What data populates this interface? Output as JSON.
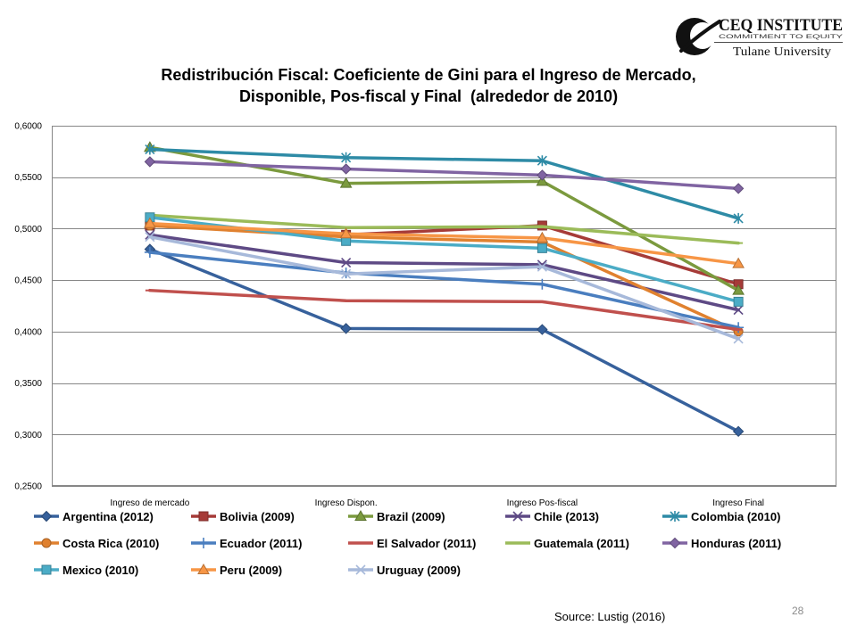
{
  "slide": {
    "source": "Source: Lustig (2016)",
    "page_number": "28"
  },
  "logo": {
    "emblem_icon": "ceq-emblem-icon",
    "name": "CEQ INSTITUTE",
    "tagline": "COMMITMENT TO EQUITY",
    "university": "Tulane University"
  },
  "chart_data": {
    "type": "line",
    "title": [
      "Redistribución Fiscal: Coeficiente de Gini para el Ingreso de Mercado,",
      "Disponible, Pos-fiscal y Final  (alrededor de 2010)"
    ],
    "categories": [
      "Ingreso de mercado",
      "Ingreso Dispon.",
      "Ingreso Pos-fiscal",
      "Ingreso Final"
    ],
    "ylim": [
      0.25,
      0.6
    ],
    "y_tick_labels": [
      "0,6000",
      "0,5500",
      "0,5000",
      "0,4500",
      "0,4000",
      "0,3500",
      "0,3000",
      "0,2500"
    ],
    "grid": true,
    "legend": "bottom",
    "series": [
      {
        "name": "Argentina (2012)",
        "color": "#37619C",
        "marker": "diamond",
        "values": [
          0.48,
          0.403,
          0.402,
          0.303
        ]
      },
      {
        "name": "Bolivia (2009)",
        "color": "#A63B38",
        "marker": "square",
        "values": [
          0.503,
          0.494,
          0.503,
          0.446
        ]
      },
      {
        "name": "Brazil (2009)",
        "color": "#7B9A3E",
        "marker": "triangle",
        "values": [
          0.579,
          0.544,
          0.546,
          0.44
        ]
      },
      {
        "name": "Chile (2013)",
        "color": "#5E4A85",
        "marker": "x",
        "values": [
          0.494,
          0.467,
          0.465,
          0.421
        ]
      },
      {
        "name": "Colombia (2010)",
        "color": "#2E8BA6",
        "marker": "star",
        "values": [
          0.577,
          0.569,
          0.566,
          0.51
        ]
      },
      {
        "name": "Costa Rica (2010)",
        "color": "#E0812F",
        "marker": "circle",
        "values": [
          0.503,
          0.492,
          0.487,
          0.4
        ]
      },
      {
        "name": "Ecuador (2011)",
        "color": "#4A7EBF",
        "marker": "plus",
        "values": [
          0.477,
          0.457,
          0.446,
          0.404
        ]
      },
      {
        "name": "El Salvador (2011)",
        "color": "#C0504D",
        "marker": "dash",
        "values": [
          0.44,
          0.43,
          0.429,
          0.402
        ]
      },
      {
        "name": "Guatemala (2011)",
        "color": "#9BBB59",
        "marker": "dash",
        "values": [
          0.513,
          0.501,
          0.502,
          0.486
        ]
      },
      {
        "name": "Honduras (2011)",
        "color": "#8064A2",
        "marker": "diamond",
        "values": [
          0.565,
          0.558,
          0.552,
          0.539
        ]
      },
      {
        "name": "Mexico (2010)",
        "color": "#4BACC6",
        "marker": "square",
        "values": [
          0.511,
          0.488,
          0.481,
          0.429
        ]
      },
      {
        "name": "Peru (2009)",
        "color": "#F79646",
        "marker": "triangle",
        "values": [
          0.505,
          0.495,
          0.491,
          0.466
        ]
      },
      {
        "name": "Uruguay (2009)",
        "color": "#A7B9DA",
        "marker": "x",
        "values": [
          0.492,
          0.456,
          0.463,
          0.393
        ]
      }
    ]
  }
}
